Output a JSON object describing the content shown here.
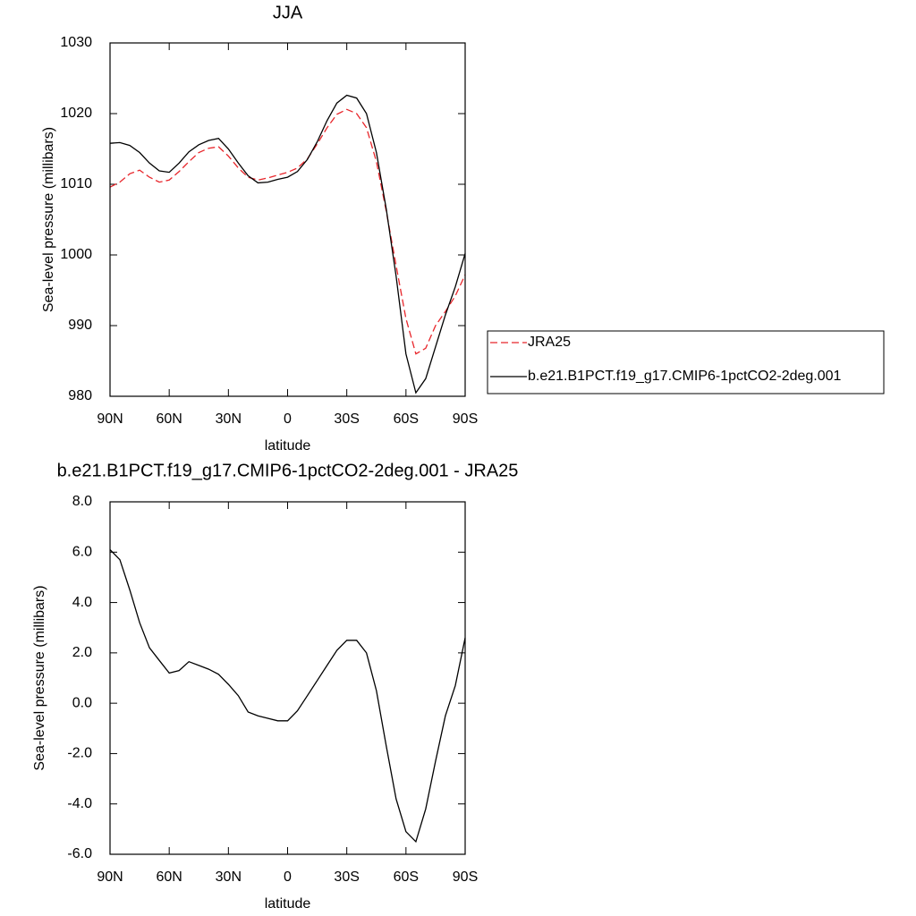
{
  "chart_data": [
    {
      "type": "line",
      "title": "JJA",
      "xlabel": "latitude",
      "ylabel": "Sea-level pressure (millibars)",
      "x": [
        90,
        85,
        80,
        75,
        70,
        65,
        60,
        55,
        50,
        45,
        40,
        35,
        30,
        25,
        20,
        15,
        10,
        5,
        0,
        -5,
        -10,
        -15,
        -20,
        -25,
        -30,
        -35,
        -40,
        -45,
        -50,
        -55,
        -60,
        -65,
        -70,
        -75,
        -80,
        -85,
        -90
      ],
      "xlim": [
        90,
        -90
      ],
      "xticks": [
        {
          "value": 90,
          "label": "90N"
        },
        {
          "value": 60,
          "label": "60N"
        },
        {
          "value": 30,
          "label": "30N"
        },
        0,
        {
          "value": -30,
          "label": "30S"
        },
        {
          "value": -60,
          "label": "60S"
        },
        {
          "value": -90,
          "label": "90S"
        }
      ],
      "ylim": [
        980,
        1030
      ],
      "yticks": [
        980,
        990,
        1000,
        1010,
        1020,
        1030
      ],
      "legend_position": "right",
      "series": [
        {
          "name": "JRA25",
          "color": "#e8262b",
          "dashed": true,
          "values": [
            1009.6,
            1010.3,
            1011.5,
            1012,
            1011,
            1010.3,
            1010.6,
            1011.8,
            1013.2,
            1014.5,
            1015.1,
            1015.3,
            1014,
            1012.3,
            1011,
            1010.6,
            1010.9,
            1011.3,
            1011.7,
            1012.3,
            1013.6,
            1015.7,
            1018,
            1019.9,
            1020.6,
            1020,
            1018,
            1013.2,
            1006.2,
            998.5,
            991,
            986,
            986.8,
            990,
            992,
            994.2,
            997.2
          ]
        },
        {
          "name": "b.e21.B1PCT.f19_g17.CMIP6-1pctCO2-2deg.001",
          "color": "#000000",
          "dashed": false,
          "values": [
            1015.8,
            1015.9,
            1015.5,
            1014.5,
            1013,
            1011.9,
            1011.7,
            1013,
            1014.6,
            1015.6,
            1016.2,
            1016.5,
            1015,
            1013,
            1011.2,
            1010.2,
            1010.3,
            1010.7,
            1011,
            1011.8,
            1013.5,
            1016,
            1019,
            1021.5,
            1022.6,
            1022.2,
            1020,
            1014.5,
            1006.5,
            997,
            986,
            980.5,
            982.5,
            987,
            991.5,
            995.5,
            1000.2
          ]
        }
      ]
    },
    {
      "type": "line",
      "title": "b.e21.B1PCT.f19_g17.CMIP6-1pctCO2-2deg.001 - JRA25",
      "xlabel": "latitude",
      "ylabel": "Sea-level pressure (millibars)",
      "x": [
        90,
        85,
        80,
        75,
        70,
        65,
        60,
        55,
        50,
        45,
        40,
        35,
        30,
        25,
        20,
        15,
        10,
        5,
        0,
        -5,
        -10,
        -15,
        -20,
        -25,
        -30,
        -35,
        -40,
        -45,
        -50,
        -55,
        -60,
        -65,
        -70,
        -75,
        -80,
        -85,
        -90
      ],
      "xlim": [
        90,
        -90
      ],
      "xticks": [
        {
          "value": 90,
          "label": "90N"
        },
        {
          "value": 60,
          "label": "60N"
        },
        {
          "value": 30,
          "label": "30N"
        },
        0,
        {
          "value": -30,
          "label": "30S"
        },
        {
          "value": -60,
          "label": "60S"
        },
        {
          "value": -90,
          "label": "90S"
        }
      ],
      "ylim": [
        -6,
        8
      ],
      "yticks": [
        {
          "value": -6,
          "label": "-6.0"
        },
        {
          "value": -4,
          "label": "-4.0"
        },
        {
          "value": -2,
          "label": "-2.0"
        },
        {
          "value": 0,
          "label": "0.0"
        },
        {
          "value": 2,
          "label": "2.0"
        },
        {
          "value": 4,
          "label": "4.0"
        },
        {
          "value": 6,
          "label": "6.0"
        },
        {
          "value": 8,
          "label": "8.0"
        }
      ],
      "color": "#000000",
      "values": [
        6.1,
        5.7,
        4.5,
        3.2,
        2.2,
        1.7,
        1.2,
        1.3,
        1.65,
        1.5,
        1.35,
        1.15,
        0.75,
        0.3,
        -0.35,
        -0.5,
        -0.6,
        -0.7,
        -0.7,
        -0.3,
        0.3,
        0.9,
        1.5,
        2.1,
        2.5,
        2.5,
        2.0,
        0.5,
        -1.7,
        -3.8,
        -5.1,
        -5.5,
        -4.2,
        -2.3,
        -0.5,
        0.7,
        2.6
      ]
    }
  ]
}
